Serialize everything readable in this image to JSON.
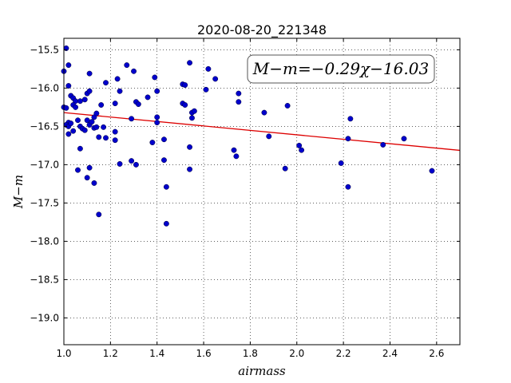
{
  "chart_data": {
    "type": "scatter",
    "title": "2020-08-20_221348",
    "xlabel": "airmass",
    "ylabel": "M−m",
    "xlim": [
      1.0,
      2.7
    ],
    "ylim": [
      -19.35,
      -15.35
    ],
    "xticks": [
      1.0,
      1.2,
      1.4,
      1.6,
      1.8,
      2.0,
      2.2,
      2.4,
      2.6
    ],
    "xtick_labels": [
      "1.0",
      "1.2",
      "1.4",
      "1.6",
      "1.8",
      "2.0",
      "2.2",
      "2.4",
      "2.6"
    ],
    "yticks": [
      -15.5,
      -16.0,
      -16.5,
      -17.0,
      -17.5,
      -18.0,
      -18.5,
      -19.0
    ],
    "ytick_labels": [
      "−15.5",
      "−16.0",
      "−16.5",
      "−17.0",
      "−17.5",
      "−18.0",
      "−18.5",
      "−19.0"
    ],
    "grid": true,
    "point_color": "#0000cc",
    "fit_color": "#dd0000",
    "fit": {
      "slope": -0.29,
      "intercept": -16.03
    },
    "annotation": "M−m=−0.29χ−16.03",
    "points": [
      [
        1.0,
        -15.78
      ],
      [
        1.01,
        -15.48
      ],
      [
        1.02,
        -15.7
      ],
      [
        1.02,
        -15.97
      ],
      [
        1.0,
        -16.25
      ],
      [
        1.01,
        -16.26
      ],
      [
        1.03,
        -16.1
      ],
      [
        1.04,
        -16.13
      ],
      [
        1.05,
        -16.17
      ],
      [
        1.04,
        -16.22
      ],
      [
        1.05,
        -16.25
      ],
      [
        1.02,
        -16.45
      ],
      [
        1.01,
        -16.48
      ],
      [
        1.02,
        -16.5
      ],
      [
        1.03,
        -16.46
      ],
      [
        1.04,
        -16.56
      ],
      [
        1.02,
        -16.6
      ],
      [
        1.06,
        -16.42
      ],
      [
        1.07,
        -16.5
      ],
      [
        1.08,
        -16.53
      ],
      [
        1.09,
        -16.55
      ],
      [
        1.07,
        -16.17
      ],
      [
        1.09,
        -16.15
      ],
      [
        1.1,
        -16.07
      ],
      [
        1.11,
        -16.04
      ],
      [
        1.11,
        -15.81
      ],
      [
        1.1,
        -16.42
      ],
      [
        1.11,
        -16.48
      ],
      [
        1.12,
        -16.44
      ],
      [
        1.13,
        -16.38
      ],
      [
        1.14,
        -16.33
      ],
      [
        1.13,
        -16.52
      ],
      [
        1.14,
        -16.51
      ],
      [
        1.15,
        -16.64
      ],
      [
        1.17,
        -16.51
      ],
      [
        1.18,
        -16.65
      ],
      [
        1.16,
        -16.22
      ],
      [
        1.18,
        -15.93
      ],
      [
        1.07,
        -16.79
      ],
      [
        1.06,
        -17.07
      ],
      [
        1.11,
        -17.04
      ],
      [
        1.1,
        -17.17
      ],
      [
        1.13,
        -17.24
      ],
      [
        1.15,
        -17.65
      ],
      [
        1.22,
        -16.2
      ],
      [
        1.22,
        -16.57
      ],
      [
        1.22,
        -16.68
      ],
      [
        1.23,
        -15.88
      ],
      [
        1.24,
        -16.04
      ],
      [
        1.24,
        -16.99
      ],
      [
        1.27,
        -15.7
      ],
      [
        1.29,
        -16.95
      ],
      [
        1.3,
        -15.78
      ],
      [
        1.29,
        -16.4
      ],
      [
        1.31,
        -16.18
      ],
      [
        1.32,
        -16.21
      ],
      [
        1.31,
        -17.0
      ],
      [
        1.36,
        -16.12
      ],
      [
        1.38,
        -16.71
      ],
      [
        1.39,
        -15.86
      ],
      [
        1.4,
        -16.04
      ],
      [
        1.4,
        -16.38
      ],
      [
        1.4,
        -16.45
      ],
      [
        1.43,
        -16.67
      ],
      [
        1.43,
        -16.94
      ],
      [
        1.44,
        -17.29
      ],
      [
        1.44,
        -17.77
      ],
      [
        1.51,
        -15.95
      ],
      [
        1.51,
        -16.2
      ],
      [
        1.52,
        -16.22
      ],
      [
        1.52,
        -15.96
      ],
      [
        1.54,
        -15.67
      ],
      [
        1.55,
        -16.32
      ],
      [
        1.56,
        -16.3
      ],
      [
        1.55,
        -16.39
      ],
      [
        1.54,
        -16.77
      ],
      [
        1.54,
        -17.06
      ],
      [
        1.61,
        -16.02
      ],
      [
        1.62,
        -15.75
      ],
      [
        1.65,
        -15.88
      ],
      [
        1.73,
        -16.81
      ],
      [
        1.74,
        -16.89
      ],
      [
        1.75,
        -16.07
      ],
      [
        1.75,
        -16.18
      ],
      [
        1.86,
        -16.32
      ],
      [
        1.88,
        -16.63
      ],
      [
        1.95,
        -17.05
      ],
      [
        1.96,
        -16.23
      ],
      [
        2.01,
        -16.75
      ],
      [
        2.02,
        -16.81
      ],
      [
        2.19,
        -16.98
      ],
      [
        2.22,
        -16.66
      ],
      [
        2.22,
        -17.29
      ],
      [
        2.23,
        -16.4
      ],
      [
        2.37,
        -16.74
      ],
      [
        2.46,
        -16.66
      ],
      [
        2.58,
        -17.08
      ]
    ]
  }
}
